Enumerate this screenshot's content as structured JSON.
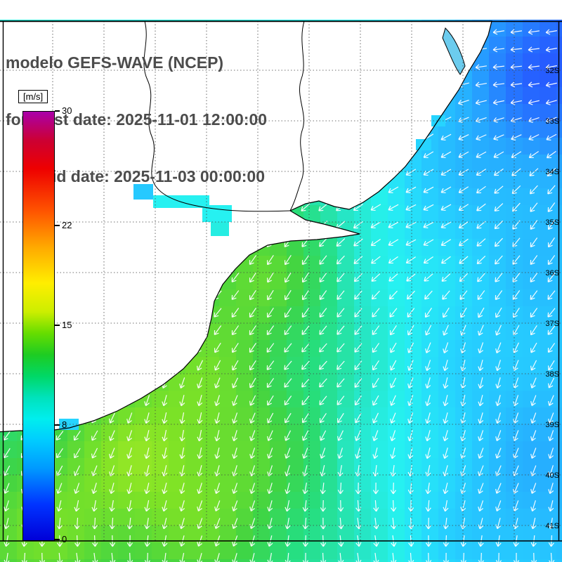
{
  "figure": {
    "title_lines": [
      "modelo GEFS-WAVE (NCEP)",
      "forecast date: 2025-11-01 12:00:00",
      "valid date: 2025-11-03 00:00:00"
    ]
  },
  "colorbar": {
    "unit_label": "[m/s]",
    "min": 0,
    "max": 30,
    "tick_values": [
      30,
      22,
      15,
      8,
      0
    ],
    "gradient_stops": [
      {
        "value": 0,
        "color": "#0000d8"
      },
      {
        "value": 2.5,
        "color": "#0033ff"
      },
      {
        "value": 5,
        "color": "#0099ff"
      },
      {
        "value": 7,
        "color": "#00ccff"
      },
      {
        "value": 8.5,
        "color": "#00eeee"
      },
      {
        "value": 10,
        "color": "#00e2bb"
      },
      {
        "value": 11.5,
        "color": "#00d866"
      },
      {
        "value": 13,
        "color": "#1ecc22"
      },
      {
        "value": 14.5,
        "color": "#66dd00"
      },
      {
        "value": 16,
        "color": "#ccee00"
      },
      {
        "value": 18,
        "color": "#ffee00"
      },
      {
        "value": 20.5,
        "color": "#ffaa00"
      },
      {
        "value": 23,
        "color": "#ff5500"
      },
      {
        "value": 26,
        "color": "#ee0000"
      },
      {
        "value": 28,
        "color": "#cc0033"
      },
      {
        "value": 30,
        "color": "#aa00aa"
      }
    ]
  },
  "map": {
    "lat_labels": [
      "32S",
      "33S",
      "34S",
      "35S",
      "36S",
      "37S",
      "38S",
      "39S",
      "40S",
      "41S"
    ],
    "wind_arrow_color": "#ffffff",
    "land_color": "#ffffff",
    "coastline_color": "#000000",
    "grid_color": "#444444"
  },
  "chart_data": {
    "type": "heatmap",
    "title": "modelo GEFS-WAVE (NCEP)",
    "colorbar": {
      "label": "[m/s]",
      "min": 0,
      "max": 30,
      "ticks": [
        0,
        8,
        15,
        22,
        30
      ]
    },
    "y_tick_labels": [
      "32S",
      "33S",
      "34S",
      "35S",
      "36S",
      "37S",
      "38S",
      "39S",
      "40S",
      "41S"
    ],
    "overlay": "wind direction arrows"
  }
}
